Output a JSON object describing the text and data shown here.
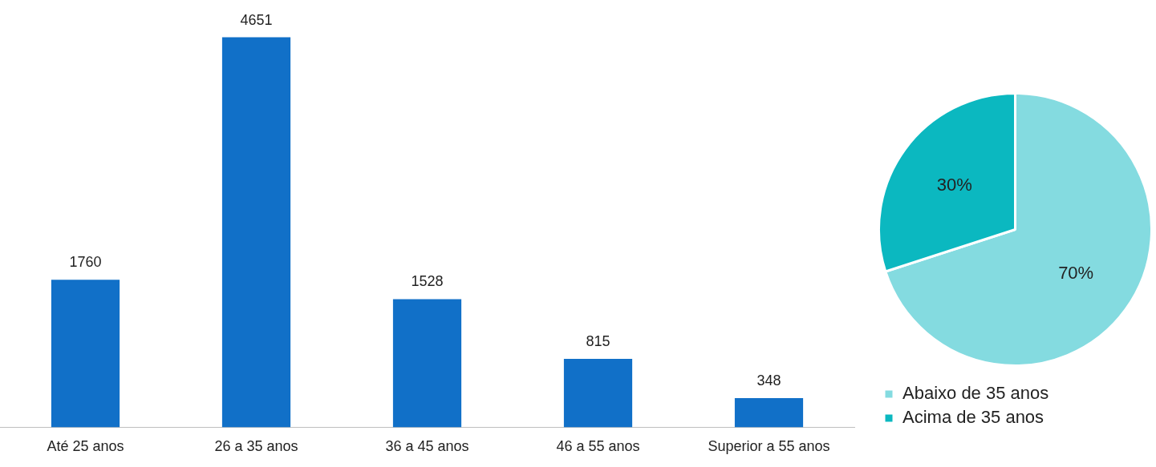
{
  "chart_data": [
    {
      "type": "bar",
      "categories": [
        "Até 25 anos",
        "26 a 35 anos",
        "36 a 45 anos",
        "46 a 55 anos",
        "Superior a 55 anos"
      ],
      "values": [
        1760,
        4651,
        1528,
        815,
        348
      ],
      "color": "#1170c8",
      "data_labels": true,
      "grid": false,
      "legend": false,
      "tick_labels": "x"
    },
    {
      "type": "pie",
      "categories": [
        "Abaixo de 35 anos",
        "Acima de 35 anos"
      ],
      "values": [
        70,
        30
      ],
      "colors": [
        "#84dbe0",
        "#0bb8c0"
      ],
      "value_labels": [
        "70%",
        "30%"
      ],
      "legend": "bottom"
    }
  ]
}
